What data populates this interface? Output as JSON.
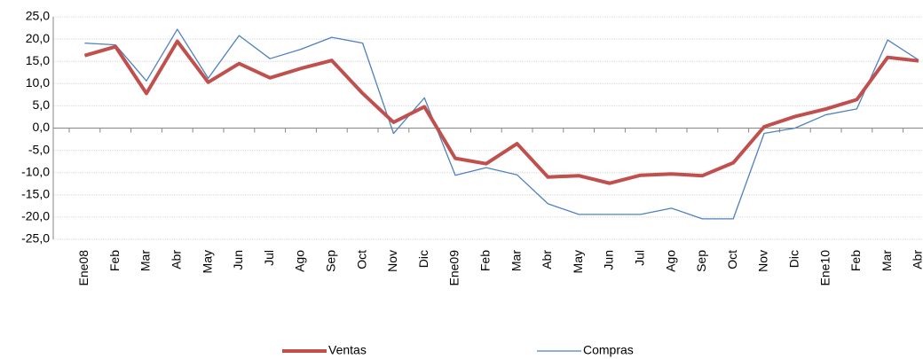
{
  "chart_data": {
    "type": "line",
    "categories": [
      "Ene08",
      "Feb",
      "Mar",
      "Abr",
      "May",
      "Jun",
      "Jul",
      "Ago",
      "Sep",
      "Oct",
      "Nov",
      "Dic",
      "Ene09",
      "Feb",
      "Mar",
      "Abr",
      "May",
      "Jun",
      "Jul",
      "Ago",
      "Sep",
      "Oct",
      "Nov",
      "Dic",
      "Ene10",
      "Feb",
      "Mar",
      "Abr"
    ],
    "series": [
      {
        "name": "Ventas",
        "color": "#c0504d",
        "values": [
          16.3,
          18.3,
          7.8,
          19.5,
          10.3,
          14.5,
          11.3,
          13.4,
          15.2,
          7.8,
          1.3,
          4.8,
          -6.8,
          -8.0,
          -3.5,
          -11.0,
          -10.7,
          -12.4,
          -10.6,
          -10.3,
          -10.7,
          -7.8,
          0.3,
          2.6,
          4.3,
          6.4,
          15.9,
          15.1
        ]
      },
      {
        "name": "Compras",
        "color": "#4f81bd",
        "values": [
          19.1,
          18.7,
          10.6,
          22.2,
          11.2,
          20.8,
          15.6,
          17.7,
          20.4,
          19.1,
          -1.2,
          6.8,
          -10.6,
          -8.9,
          -10.5,
          -17.0,
          -19.4,
          -19.4,
          -19.4,
          -18.0,
          -20.4,
          -20.4,
          -1.2,
          0.0,
          3.0,
          4.3,
          19.8,
          15.3
        ]
      }
    ],
    "ylim": [
      -25,
      25
    ],
    "yticks": [
      {
        "value": -25,
        "label": "-25,0"
      },
      {
        "value": -20,
        "label": "-20,0"
      },
      {
        "value": -15,
        "label": "-15,0"
      },
      {
        "value": -10,
        "label": "-10,0"
      },
      {
        "value": -5,
        "label": "-5,0"
      },
      {
        "value": 0,
        "label": "0,0"
      },
      {
        "value": 5,
        "label": "5,0"
      },
      {
        "value": 10,
        "label": "10,0"
      },
      {
        "value": 15,
        "label": "15,0"
      },
      {
        "value": 20,
        "label": "20,0"
      },
      {
        "value": 25,
        "label": "25,0"
      }
    ],
    "grid": true,
    "legend": "bottom"
  }
}
